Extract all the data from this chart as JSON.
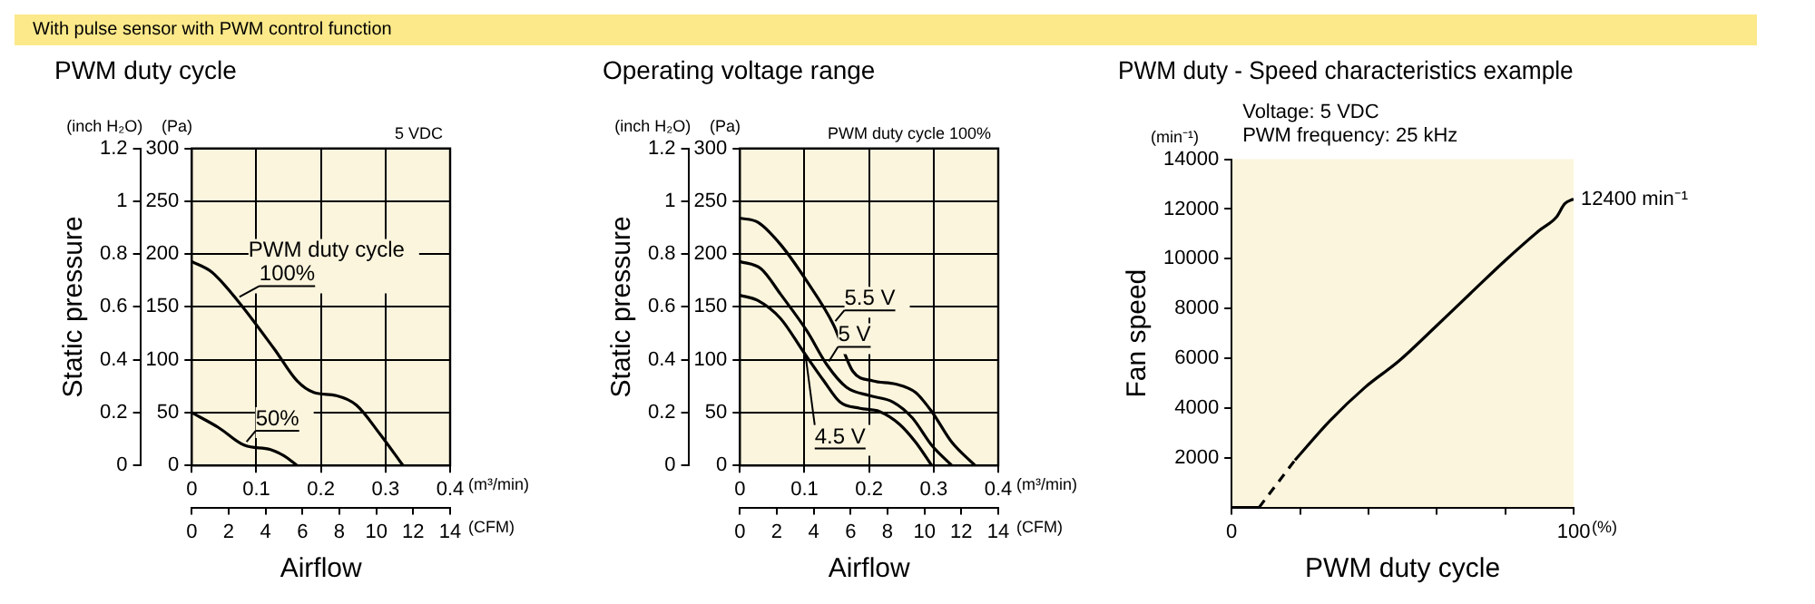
{
  "chart_data": [
    {
      "type": "other",
      "title": "With pulse sensor with PWM control function"
    },
    {
      "type": "line",
      "title": "PWM duty cycle",
      "xlabel": "Airflow",
      "ylabel": "Static pressure",
      "grid": true,
      "xlim": [
        0,
        0.4
      ],
      "xticks": [
        0,
        0.1,
        0.2,
        0.3,
        0.4
      ],
      "x2lim": [
        0,
        14
      ],
      "x2ticks": [
        0,
        2,
        4,
        6,
        8,
        10,
        12,
        14
      ],
      "ylim": [
        0,
        1.2
      ],
      "yticks": [
        0,
        0.2,
        0.4,
        0.6,
        0.8,
        1.0,
        1.2
      ],
      "y2lim": [
        0,
        300
      ],
      "y2ticks": [
        0,
        50,
        100,
        150,
        200,
        250,
        300
      ],
      "annotations": [
        "(inch H₂O)",
        "(Pa)",
        "(m³/min)",
        "(CFM)",
        "5 VDC"
      ],
      "series": [
        {
          "name": "PWM duty cycle 100%",
          "color": "#000000",
          "axis": "y2",
          "x": [
            0,
            0.031,
            0.071,
            0.128,
            0.163,
            0.189,
            0.224,
            0.255,
            0.291,
            0.327
          ],
          "values": [
            193,
            183,
            156,
            110,
            80,
            69,
            66,
            57,
            30,
            0
          ]
        },
        {
          "name": "50%",
          "color": "#000000",
          "axis": "y2",
          "x": [
            0,
            0.041,
            0.082,
            0.122,
            0.143,
            0.163
          ],
          "values": [
            50,
            36,
            19,
            15,
            9,
            0
          ]
        }
      ]
    },
    {
      "type": "line",
      "title": "Operating voltage range",
      "xlabel": "Airflow",
      "ylabel": "Static pressure",
      "grid": true,
      "xlim": [
        0,
        0.4
      ],
      "xticks": [
        0,
        0.1,
        0.2,
        0.3,
        0.4
      ],
      "x2lim": [
        0,
        14
      ],
      "x2ticks": [
        0,
        2,
        4,
        6,
        8,
        10,
        12,
        14
      ],
      "ylim": [
        0,
        1.2
      ],
      "yticks": [
        0,
        0.2,
        0.4,
        0.6,
        0.8,
        1.0,
        1.2
      ],
      "y2lim": [
        0,
        300
      ],
      "y2ticks": [
        0,
        50,
        100,
        150,
        200,
        250,
        300
      ],
      "annotations": [
        "(inch H₂O)",
        "(Pa)",
        "(m³/min)",
        "(CFM)",
        "PWM duty cycle 100%"
      ],
      "series": [
        {
          "name": "5.5 V",
          "color": "#000000",
          "axis": "y2",
          "x": [
            0,
            0.028,
            0.063,
            0.104,
            0.145,
            0.175,
            0.206,
            0.241,
            0.272,
            0.297,
            0.328,
            0.364
          ],
          "values": [
            234,
            230,
            209,
            174,
            133,
            89,
            80,
            77,
            69,
            51,
            22,
            0
          ]
        },
        {
          "name": "5 V",
          "color": "#000000",
          "axis": "y2",
          "x": [
            0,
            0.033,
            0.063,
            0.104,
            0.135,
            0.165,
            0.201,
            0.237,
            0.267,
            0.297,
            0.328
          ],
          "values": [
            193,
            186,
            162,
            127,
            95,
            74,
            66,
            60,
            45,
            19,
            0
          ]
        },
        {
          "name": "4.5 V",
          "color": "#000000",
          "axis": "y2",
          "x": [
            0,
            0.028,
            0.063,
            0.099,
            0.13,
            0.155,
            0.186,
            0.216,
            0.247,
            0.272,
            0.297
          ],
          "values": [
            161,
            156,
            139,
            107,
            80,
            60,
            54,
            51,
            39,
            22,
            0
          ]
        }
      ]
    },
    {
      "type": "line",
      "title": "PWM duty - Speed characteristics example",
      "xlabel": "PWM duty cycle",
      "ylabel": "Fan speed",
      "xlim": [
        0,
        100
      ],
      "xticks": [
        0,
        {
          "value": 20,
          "label": null
        },
        {
          "value": 40,
          "label": null
        },
        {
          "value": 60,
          "label": null
        },
        {
          "value": 80,
          "label": null
        },
        100
      ],
      "ylim": [
        0,
        14000
      ],
      "yticks": [
        2000,
        4000,
        6000,
        8000,
        10000,
        12000,
        14000
      ],
      "annotations": [
        "(min⁻¹)",
        "Voltage: 5 VDC",
        "PWM frequency: 25 kHz",
        "(%)",
        {
          "text": "12400 min⁻¹",
          "x": 100,
          "y": 12400
        }
      ],
      "series": [
        {
          "color": "#000000",
          "x": [
            0,
            8
          ],
          "values": [
            0,
            0
          ]
        },
        {
          "color": "#000000",
          "line_style": "dashed",
          "x": [
            8,
            18.5
          ],
          "values": [
            0,
            1900
          ]
        },
        {
          "color": "#000000",
          "x": [
            18.5,
            28.7,
            39,
            49,
            59.5,
            69.7,
            80,
            90,
            95,
            97.4,
            100
          ],
          "values": [
            1900,
            3480,
            4830,
            5900,
            7250,
            8590,
            9930,
            11140,
            11680,
            12210,
            12400
          ]
        }
      ]
    }
  ]
}
